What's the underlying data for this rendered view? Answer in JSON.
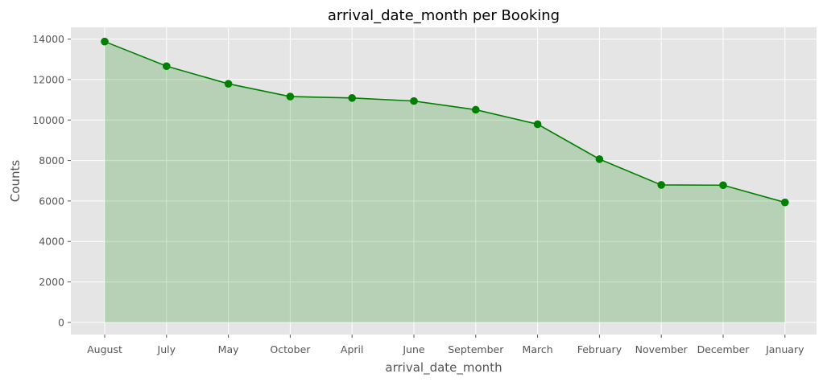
{
  "chart_data": {
    "type": "area",
    "title": "arrival_date_month per Booking",
    "xlabel": "arrival_date_month",
    "ylabel": "Counts",
    "categories": [
      "August",
      "July",
      "May",
      "October",
      "April",
      "June",
      "September",
      "March",
      "February",
      "November",
      "December",
      "January"
    ],
    "series": [
      {
        "values": [
          13877,
          12661,
          11791,
          11160,
          11089,
          10939,
          10508,
          9794,
          8068,
          6794,
          6780,
          5929
        ]
      }
    ],
    "yticks": [
      0,
      2000,
      4000,
      6000,
      8000,
      10000,
      12000,
      14000
    ],
    "ylim": [
      -600,
      14580
    ],
    "grid": true,
    "colors": {
      "line": "#008000",
      "fill": "#008000",
      "plot_background": "#e5e5e5",
      "grid": "#ffffff"
    }
  }
}
